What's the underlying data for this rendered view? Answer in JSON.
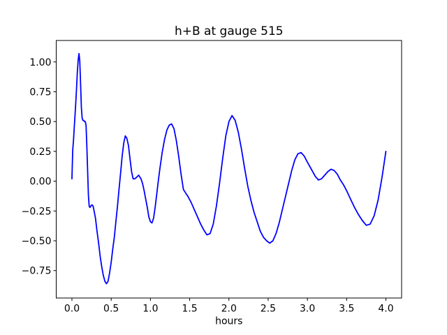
{
  "chart_data": {
    "type": "line",
    "title": "h+B at gauge 515",
    "xlabel": "hours",
    "ylabel": "",
    "xlim": [
      -0.2,
      4.2
    ],
    "ylim": [
      -0.98,
      1.18
    ],
    "grid": false,
    "legend": null,
    "background": "#ffffff",
    "line_color": "#0000ff",
    "spine_color": "#000000",
    "xticks": {
      "values": [
        0.0,
        0.5,
        1.0,
        1.5,
        2.0,
        2.5,
        3.0,
        3.5,
        4.0
      ],
      "labels": [
        "0.0",
        "0.5",
        "1.0",
        "1.5",
        "2.0",
        "2.5",
        "3.0",
        "3.5",
        "4.0"
      ]
    },
    "yticks": {
      "values": [
        1.0,
        0.75,
        0.5,
        0.25,
        0.0,
        -0.25,
        -0.5,
        -0.75
      ],
      "labels": [
        "1.00",
        "0.75",
        "0.50",
        "0.25",
        "0.00",
        "−0.25",
        "−0.50",
        "−0.75"
      ]
    },
    "series": [
      {
        "name": "h+B",
        "x": [
          0,
          0.01,
          0.02,
          0.03,
          0.04,
          0.05,
          0.06,
          0.07,
          0.08,
          0.09,
          0.1,
          0.11,
          0.12,
          0.13,
          0.14,
          0.15,
          0.16,
          0.17,
          0.18,
          0.19,
          0.2,
          0.21,
          0.22,
          0.23,
          0.24,
          0.25,
          0.26,
          0.27,
          0.28,
          0.3,
          0.32,
          0.34,
          0.36,
          0.38,
          0.4,
          0.42,
          0.44,
          0.46,
          0.48,
          0.5,
          0.52,
          0.54,
          0.56,
          0.58,
          0.6,
          0.62,
          0.64,
          0.66,
          0.68,
          0.7,
          0.72,
          0.74,
          0.76,
          0.78,
          0.8,
          0.82,
          0.85,
          0.88,
          0.9,
          0.92,
          0.94,
          0.96,
          0.98,
          1,
          1.02,
          1.04,
          1.06,
          1.08,
          1.1,
          1.12,
          1.15,
          1.18,
          1.21,
          1.24,
          1.27,
          1.3,
          1.33,
          1.36,
          1.39,
          1.42,
          1.45,
          1.48,
          1.52,
          1.56,
          1.6,
          1.64,
          1.68,
          1.72,
          1.76,
          1.8,
          1.84,
          1.88,
          1.92,
          1.96,
          2,
          2.04,
          2.08,
          2.12,
          2.16,
          2.2,
          2.24,
          2.28,
          2.32,
          2.36,
          2.4,
          2.44,
          2.48,
          2.52,
          2.56,
          2.6,
          2.64,
          2.68,
          2.72,
          2.76,
          2.8,
          2.84,
          2.88,
          2.92,
          2.96,
          3,
          3.05,
          3.1,
          3.14,
          3.18,
          3.22,
          3.26,
          3.3,
          3.34,
          3.38,
          3.42,
          3.46,
          3.5,
          3.55,
          3.6,
          3.65,
          3.7,
          3.75,
          3.8,
          3.85,
          3.9,
          3.95,
          4
        ],
        "y": [
          0.02,
          0.26,
          0.34,
          0.45,
          0.56,
          0.67,
          0.79,
          0.92,
          1.02,
          1.07,
          1.01,
          0.83,
          0.62,
          0.53,
          0.51,
          0.51,
          0.5,
          0.5,
          0.47,
          0.3,
          0.08,
          -0.12,
          -0.21,
          -0.22,
          -0.21,
          -0.2,
          -0.2,
          -0.21,
          -0.24,
          -0.31,
          -0.42,
          -0.52,
          -0.63,
          -0.72,
          -0.79,
          -0.84,
          -0.86,
          -0.84,
          -0.77,
          -0.68,
          -0.57,
          -0.47,
          -0.34,
          -0.21,
          -0.07,
          0.07,
          0.21,
          0.32,
          0.38,
          0.36,
          0.3,
          0.19,
          0.08,
          0.02,
          0.02,
          0.03,
          0.05,
          0.02,
          -0.02,
          -0.08,
          -0.15,
          -0.22,
          -0.3,
          -0.34,
          -0.35,
          -0.31,
          -0.22,
          -0.11,
          0,
          0.1,
          0.24,
          0.35,
          0.43,
          0.47,
          0.48,
          0.44,
          0.34,
          0.21,
          0.06,
          -0.07,
          -0.1,
          -0.13,
          -0.18,
          -0.24,
          -0.3,
          -0.36,
          -0.41,
          -0.45,
          -0.44,
          -0.36,
          -0.21,
          -0.02,
          0.19,
          0.38,
          0.5,
          0.55,
          0.51,
          0.41,
          0.27,
          0.11,
          -0.04,
          -0.16,
          -0.26,
          -0.34,
          -0.42,
          -0.47,
          -0.5,
          -0.52,
          -0.5,
          -0.44,
          -0.35,
          -0.24,
          -0.13,
          -0.02,
          0.09,
          0.18,
          0.23,
          0.24,
          0.21,
          0.16,
          0.1,
          0.04,
          0.01,
          0.02,
          0.05,
          0.08,
          0.1,
          0.09,
          0.06,
          0.01,
          -0.03,
          -0.08,
          -0.15,
          -0.22,
          -0.28,
          -0.33,
          -0.37,
          -0.36,
          -0.29,
          -0.16,
          0.03,
          0.25
        ]
      }
    ]
  }
}
